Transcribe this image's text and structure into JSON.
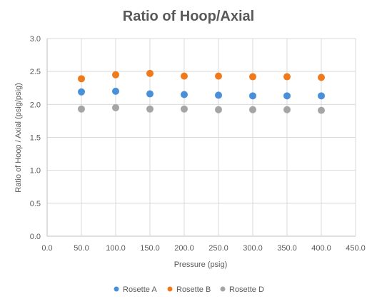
{
  "chart_data": {
    "type": "scatter",
    "title": "Ratio of Hoop/Axial",
    "xlabel": "Pressure (psig)",
    "ylabel": "Ratio of Hoop / Axial (psig/psig)",
    "xlim": [
      0,
      450
    ],
    "ylim": [
      0,
      3
    ],
    "xticks": [
      "0.0",
      "50.0",
      "100.0",
      "150.0",
      "200.0",
      "250.0",
      "300.0",
      "350.0",
      "400.0",
      "450.0"
    ],
    "yticks": [
      "0.0",
      "0.5",
      "1.0",
      "1.5",
      "2.0",
      "2.5",
      "3.0"
    ],
    "grid": true,
    "legend_position": "bottom",
    "x": [
      50,
      100,
      150,
      200,
      250,
      300,
      350,
      400
    ],
    "series": [
      {
        "name": "Rosette A",
        "color": "#4a90d9",
        "values": [
          2.19,
          2.2,
          2.16,
          2.15,
          2.14,
          2.13,
          2.13,
          2.13
        ]
      },
      {
        "name": "Rosette B",
        "color": "#f07a1a",
        "values": [
          2.39,
          2.45,
          2.47,
          2.43,
          2.43,
          2.42,
          2.42,
          2.41
        ]
      },
      {
        "name": "Rosette D",
        "color": "#a5a5a5",
        "values": [
          1.93,
          1.95,
          1.93,
          1.93,
          1.92,
          1.92,
          1.92,
          1.91
        ]
      }
    ]
  }
}
